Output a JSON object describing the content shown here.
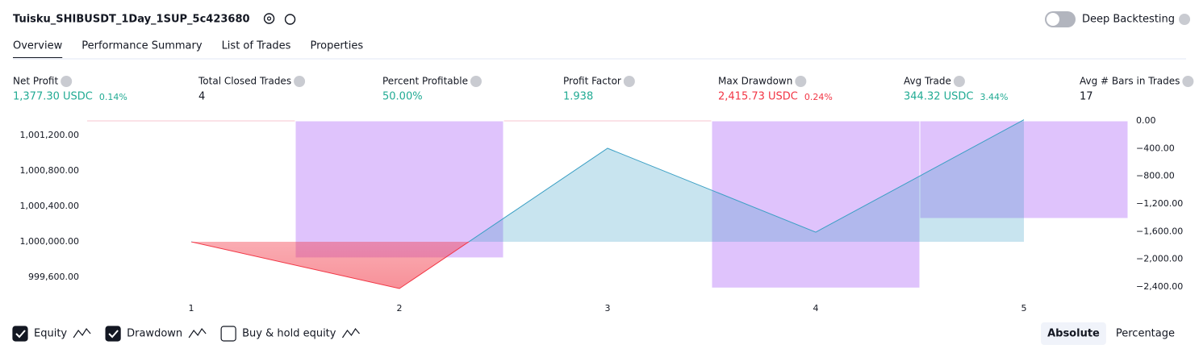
{
  "header": {
    "title": "Tuisku_SHIBUSDT_1Day_1SUP_5c423680",
    "deep_backtesting": "Deep Backtesting",
    "deep_backtesting_on": false
  },
  "tabs": [
    "Overview",
    "Performance Summary",
    "List of Trades",
    "Properties"
  ],
  "active_tab": 0,
  "metrics": [
    {
      "label": "Net Profit",
      "value": "1,377.30 USDC",
      "pct": "0.14%",
      "tone": "positive"
    },
    {
      "label": "Total Closed Trades",
      "value": "4"
    },
    {
      "label": "Percent Profitable",
      "value": "50.00%",
      "tone": "positive"
    },
    {
      "label": "Profit Factor",
      "value": "1.938",
      "tone": "positive"
    },
    {
      "label": "Max Drawdown",
      "value": "2,415.73 USDC",
      "pct": "0.24%",
      "tone": "negative"
    },
    {
      "label": "Avg Trade",
      "value": "344.32 USDC",
      "pct": "3.44%",
      "tone": "positive"
    },
    {
      "label": "Avg # Bars in Trades",
      "value": "17"
    }
  ],
  "chart_data": {
    "type": "line",
    "x": [
      1,
      2,
      3,
      4,
      5
    ],
    "xticks": [
      1,
      2,
      3,
      4,
      5
    ],
    "xlim": [
      0.5,
      5.5
    ],
    "series": [
      {
        "name": "Equity",
        "color": "#3a9fc4",
        "negative_color": "#f23645",
        "values": [
          1000000,
          999473,
          1001055,
          1000109,
          1001377.3
        ]
      },
      {
        "name": "Drawdown",
        "type": "bar",
        "axis": "y2",
        "color": "#dfc3fc",
        "values": [
          0,
          -1980,
          0,
          -2415.73,
          -1410
        ]
      }
    ],
    "ylim": [
      999455,
      1001364
    ],
    "yticks": [
      {
        "value": 999600,
        "label": "999,600.00"
      },
      {
        "value": 1000000,
        "label": "1,000,000.00"
      },
      {
        "value": 1000400,
        "label": "1,000,400.00"
      },
      {
        "value": 1000800,
        "label": "1,000,800.00"
      },
      {
        "value": 1001200,
        "label": "1,001,200.00"
      }
    ],
    "y2lim": [
      -2447,
      0
    ],
    "y2ticks": [
      {
        "value": 0,
        "label": "0.00"
      },
      {
        "value": -400,
        "label": "−400.00"
      },
      {
        "value": -800,
        "label": "−800.00"
      },
      {
        "value": -1200,
        "label": "−1,200.00"
      },
      {
        "value": -1600,
        "label": "−1,600.00"
      },
      {
        "value": -2000,
        "label": "−2,000.00"
      },
      {
        "value": -2400,
        "label": "−2,400.00"
      }
    ]
  },
  "options": [
    {
      "label": "Equity",
      "checked": true
    },
    {
      "label": "Drawdown",
      "checked": true
    },
    {
      "label": "Buy & hold equity",
      "checked": false
    }
  ],
  "modes": [
    "Absolute",
    "Percentage"
  ],
  "active_mode": 0
}
